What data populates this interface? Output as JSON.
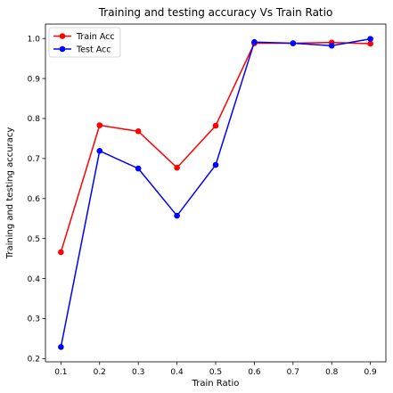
{
  "chart_data": {
    "type": "line",
    "title": "Training and testing accuracy Vs Train Ratio",
    "xlabel": "Train Ratio",
    "ylabel": "Training and testing accuracy",
    "x": [
      0.1,
      0.2,
      0.3,
      0.4,
      0.5,
      0.6,
      0.7,
      0.8,
      0.9
    ],
    "xticks": [
      "0.1",
      "0.2",
      "0.3",
      "0.4",
      "0.5",
      "0.6",
      "0.7",
      "0.8",
      "0.9"
    ],
    "yticks": [
      "0.2",
      "0.3",
      "0.4",
      "0.5",
      "0.6",
      "0.7",
      "0.8",
      "0.9",
      "1.0"
    ],
    "xlim": [
      0.06,
      0.94
    ],
    "ylim": [
      0.192,
      1.036
    ],
    "grid": false,
    "legend_position": "top-left",
    "series": [
      {
        "name": "Train Acc",
        "color": "#ff0000",
        "values": [
          0.466,
          0.783,
          0.768,
          0.677,
          0.782,
          0.988,
          0.988,
          0.99,
          0.987
        ]
      },
      {
        "name": "Test Acc",
        "color": "#0000ff",
        "values": [
          0.229,
          0.719,
          0.675,
          0.557,
          0.684,
          0.991,
          0.988,
          0.982,
          0.999
        ]
      }
    ]
  }
}
